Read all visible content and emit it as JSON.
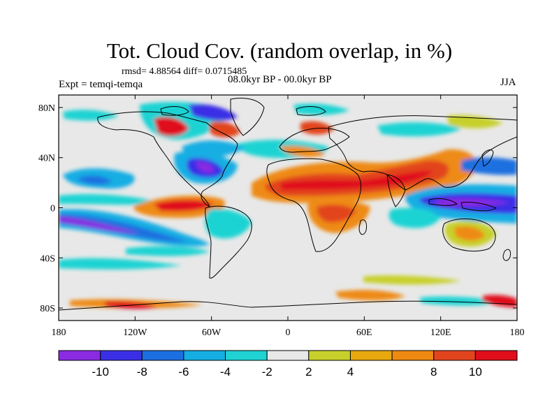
{
  "header": {
    "title": "Tot. Cloud Cov. (random overlap, in %)",
    "stats": "rmsd= 4.88564  diff= 0.0715485",
    "experiment": "Expt = temqi-temqa",
    "period": "08.0kyr BP - 00.0kyr BP",
    "season": "JJA"
  },
  "axes": {
    "x_ticks": [
      "180",
      "120W",
      "60W",
      "0",
      "60E",
      "120E",
      "180"
    ],
    "y_ticks": [
      "80N",
      "40N",
      "0",
      "40S",
      "80S"
    ]
  },
  "colorbar": {
    "colors": [
      "#8A2BE2",
      "#3A2FE6",
      "#1C6FE0",
      "#15AEE3",
      "#1FD3D3",
      "#E8E8E8",
      "#C7D02A",
      "#E8A90E",
      "#EE8A12",
      "#E2451E",
      "#E00E1A"
    ],
    "labels": [
      "-10",
      "-8",
      "-6",
      "-4",
      "-2",
      "2",
      "4",
      "8",
      "10"
    ]
  },
  "colors": {
    "background": "#E8E8E8",
    "frame": "#000000"
  }
}
